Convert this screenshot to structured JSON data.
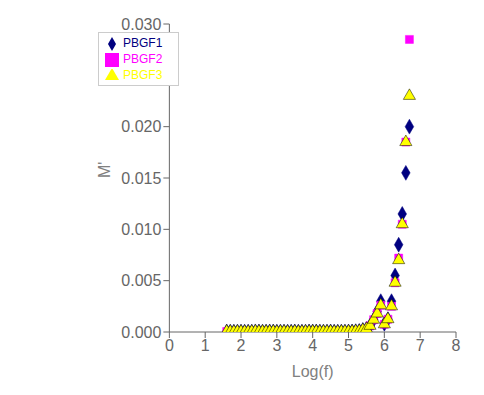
{
  "chart_data": {
    "type": "scatter",
    "xlabel": "Log(f)",
    "ylabel": "M'",
    "xlim": [
      0,
      8
    ],
    "ylim": [
      0,
      0.03
    ],
    "xticks": [
      0,
      1,
      2,
      3,
      4,
      5,
      6,
      7,
      8
    ],
    "yticks": [
      {
        "value": 0,
        "label": "0.000"
      },
      0.005,
      {
        "value": 0.01,
        "label": "0.010"
      },
      0.015,
      {
        "value": 0.02,
        "label": "0.020"
      },
      0.025,
      {
        "value": 0.03,
        "label": "0.030"
      }
    ],
    "grid": false,
    "legend": "upper left",
    "x": [
      1.6,
      1.7,
      1.8,
      1.9,
      2.0,
      2.1,
      2.2,
      2.3,
      2.4,
      2.5,
      2.6,
      2.7,
      2.8,
      2.9,
      3.0,
      3.1,
      3.2,
      3.3,
      3.4,
      3.5,
      3.6,
      3.7,
      3.8,
      3.9,
      4.0,
      4.1,
      4.2,
      4.3,
      4.4,
      4.5,
      4.6,
      4.7,
      4.8,
      4.9,
      5.0,
      5.1,
      5.2,
      5.3,
      5.4,
      5.5,
      5.6,
      5.7,
      5.8,
      5.9,
      6.0,
      6.1,
      6.2,
      6.3,
      6.4,
      6.5,
      6.6,
      6.7
    ],
    "series": [
      {
        "name": "PBGF1",
        "color": "#000080",
        "marker": "diamond",
        "values": [
          5e-05,
          4e-05,
          3e-05,
          4e-05,
          4e-05,
          3e-05,
          3e-05,
          4e-05,
          6e-05,
          5e-05,
          4e-05,
          4e-05,
          5e-05,
          5e-05,
          3e-05,
          4e-05,
          4e-05,
          3e-05,
          3e-05,
          5e-05,
          3e-05,
          3e-05,
          4e-05,
          5e-05,
          5e-05,
          5e-05,
          4e-05,
          4e-05,
          4e-05,
          5e-05,
          3e-05,
          3e-05,
          4e-05,
          4e-05,
          5e-05,
          5e-05,
          8e-05,
          0.0001,
          0.0002,
          0.0003,
          0.0006,
          0.0012,
          0.002,
          0.003,
          0.0008,
          0.00125,
          0.003,
          0.0055,
          0.0085,
          0.0115,
          0.0155,
          0.02
        ]
      },
      {
        "name": "PBGF2",
        "color": "#ff00ff",
        "marker": "square",
        "values": [
          5e-05,
          4e-05,
          3e-05,
          4e-05,
          4e-05,
          3e-05,
          3e-05,
          4e-05,
          6e-05,
          5e-05,
          4e-05,
          4e-05,
          5e-05,
          5e-05,
          3e-05,
          4e-05,
          4e-05,
          3e-05,
          3e-05,
          5e-05,
          3e-05,
          3e-05,
          4e-05,
          5e-05,
          5e-05,
          5e-05,
          4e-05,
          4e-05,
          4e-05,
          5e-05,
          3e-05,
          3e-05,
          4e-05,
          4e-05,
          5e-05,
          5e-05,
          8e-05,
          0.0001,
          0.0002,
          0.0003,
          0.0006,
          0.0012,
          0.0018,
          0.0026,
          0.00075,
          0.00125,
          0.0025,
          0.0048,
          0.0072,
          0.0105,
          0.0185,
          0.0285
        ]
      },
      {
        "name": "PBGF3",
        "color": "#ffff00",
        "marker": "triangle",
        "values": [
          5e-05,
          4e-05,
          3e-05,
          4e-05,
          4e-05,
          3e-05,
          3e-05,
          4e-05,
          6e-05,
          5e-05,
          4e-05,
          4e-05,
          5e-05,
          5e-05,
          3e-05,
          4e-05,
          4e-05,
          3e-05,
          3e-05,
          5e-05,
          3e-05,
          3e-05,
          4e-05,
          5e-05,
          5e-05,
          5e-05,
          4e-05,
          4e-05,
          4e-05,
          5e-05,
          3e-05,
          3e-05,
          4e-05,
          4e-05,
          5e-05,
          5e-05,
          8e-05,
          0.0001,
          0.0002,
          0.0003,
          0.0006,
          0.0012,
          0.0018,
          0.0026,
          0.00075,
          0.00125,
          0.0025,
          0.0048,
          0.007,
          0.0105,
          0.0185,
          0.023
        ]
      }
    ]
  }
}
